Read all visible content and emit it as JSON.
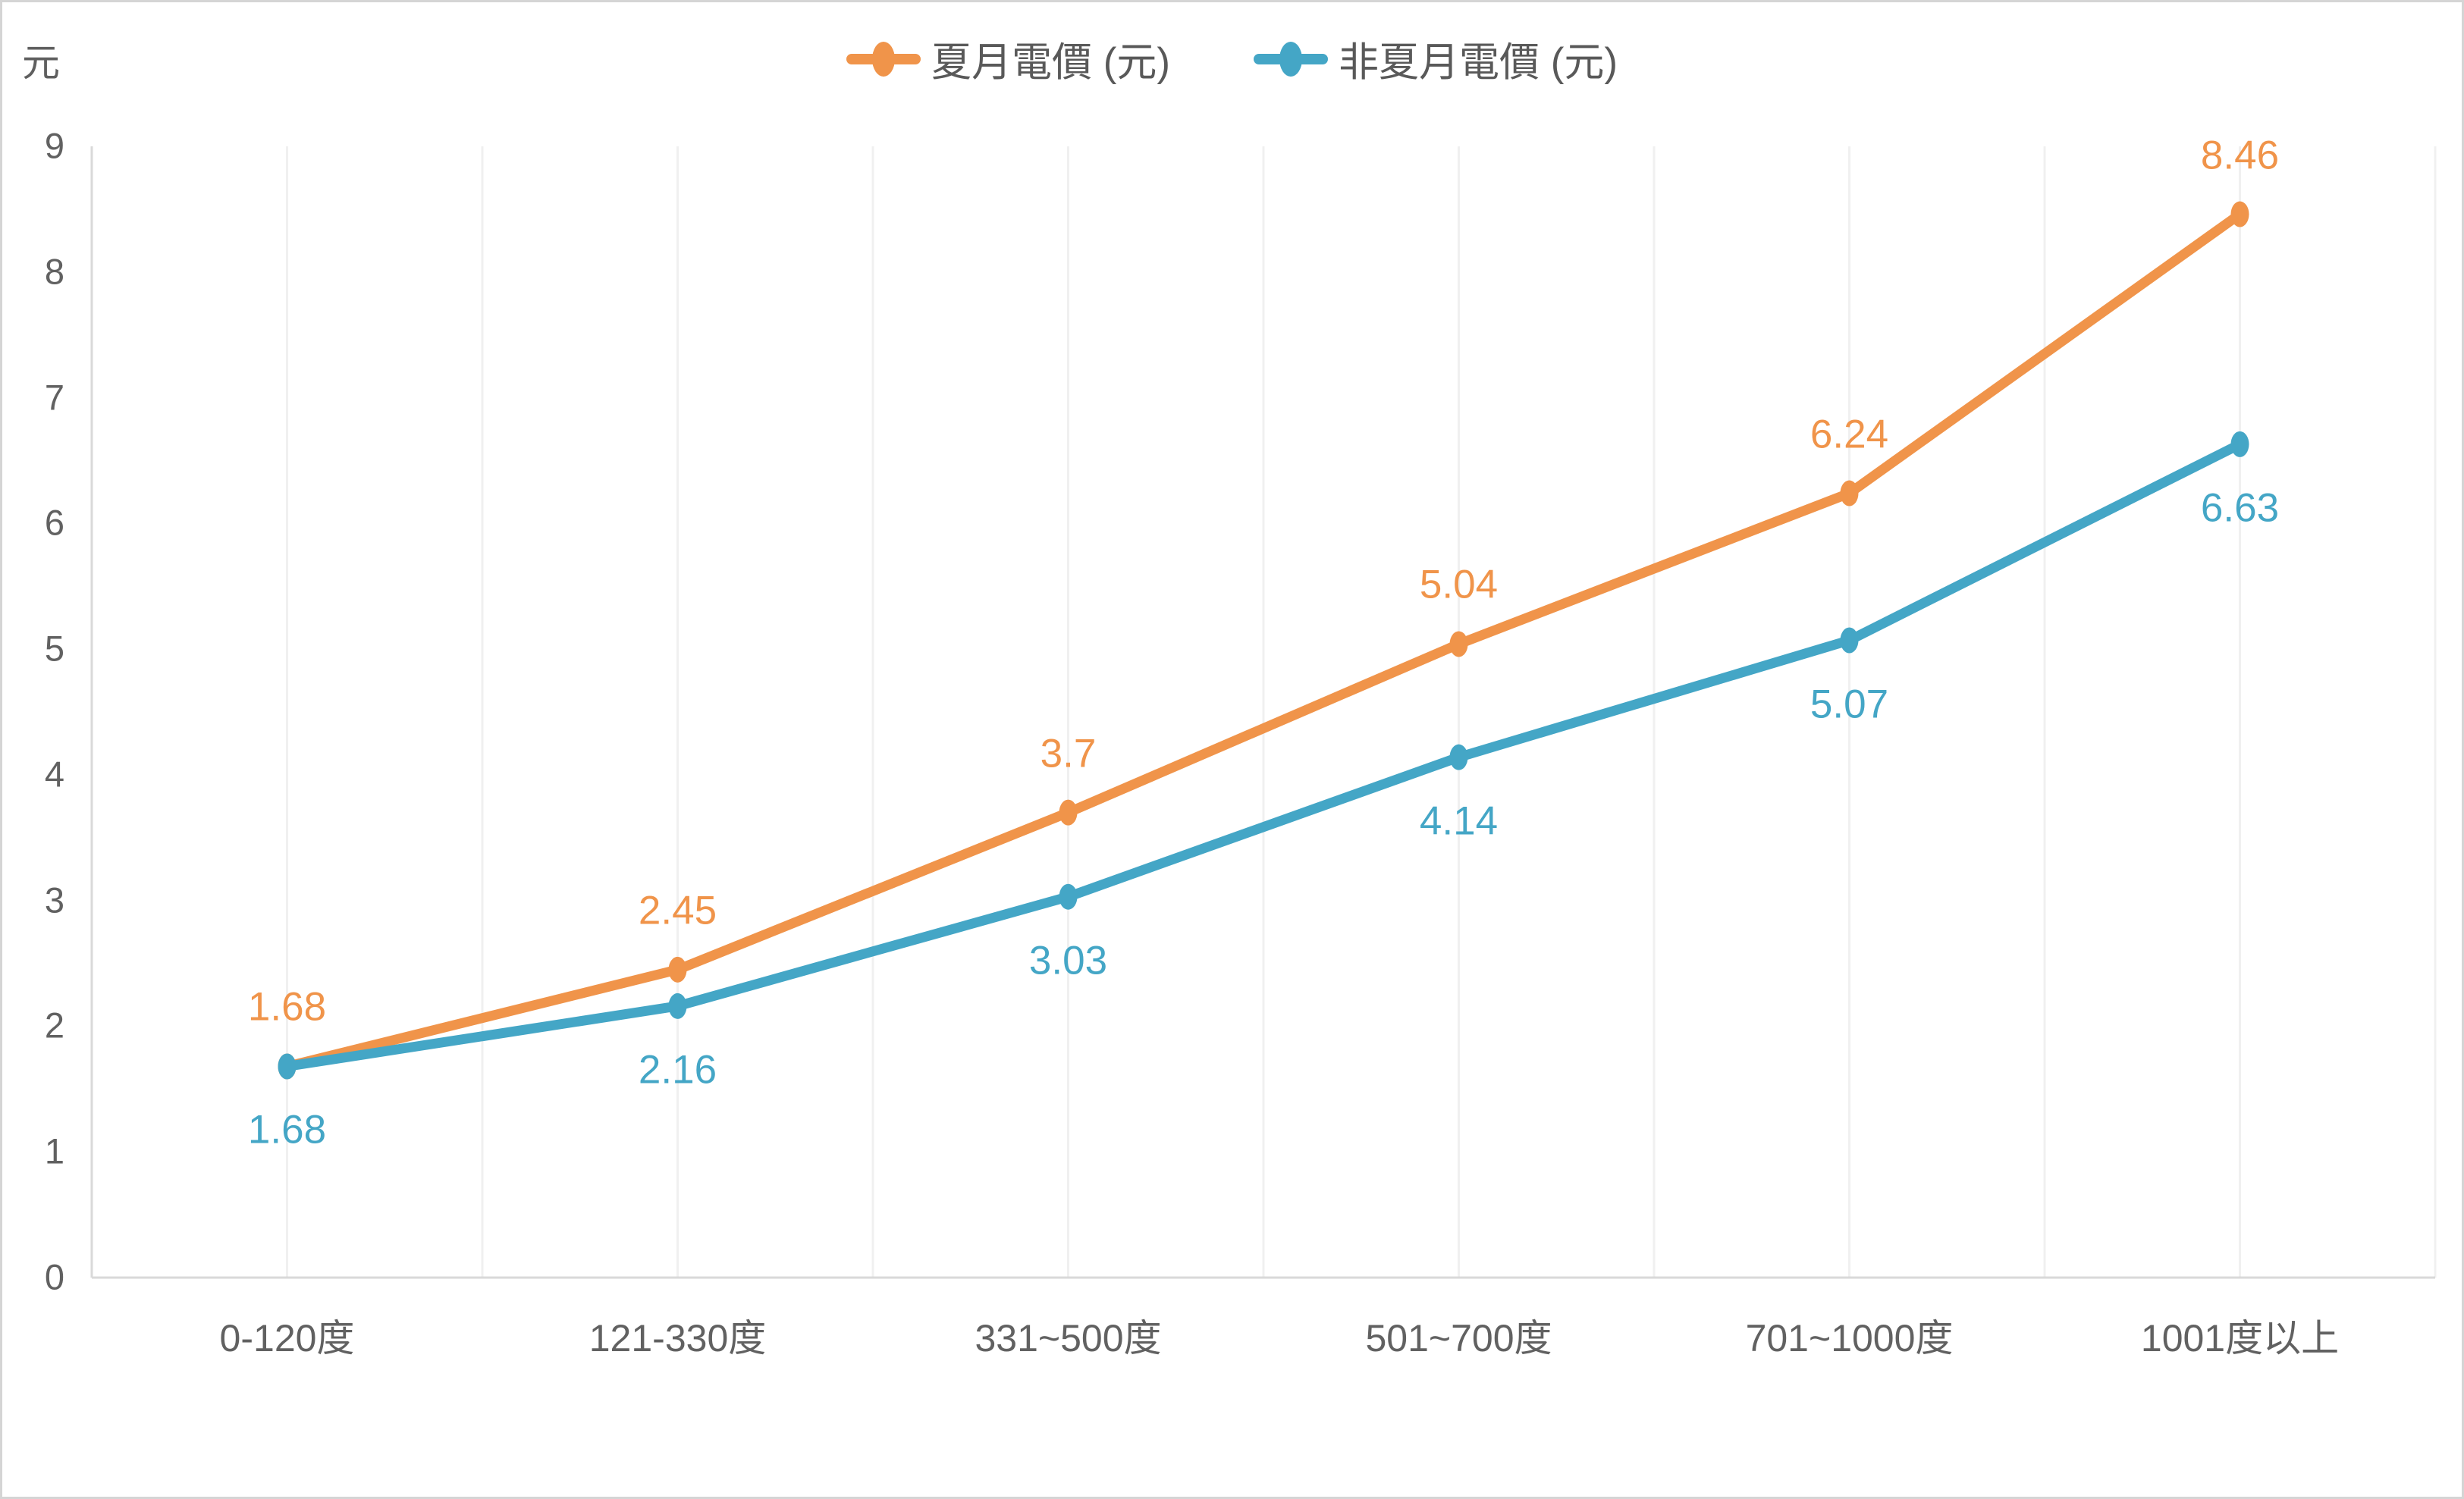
{
  "chart_data": {
    "type": "line",
    "title": "",
    "unit_label": "元",
    "categories": [
      "0-120度",
      "121-330度",
      "331~500度",
      "501~700度",
      "701~1000度",
      "1001度以上"
    ],
    "series": [
      {
        "name": "夏月電價 (元)",
        "color": "#F0944A",
        "values": [
          1.68,
          2.45,
          3.7,
          5.04,
          6.24,
          8.46
        ],
        "data_labels": [
          "1.68",
          "2.45",
          "3.7",
          "5.04",
          "6.24",
          "8.46"
        ],
        "label_position": "above"
      },
      {
        "name": "非夏月電價 (元)",
        "color": "#44A6C6",
        "values": [
          1.68,
          2.16,
          3.03,
          4.14,
          5.07,
          6.63
        ],
        "data_labels": [
          "1.68",
          "2.16",
          "3.03",
          "4.14",
          "5.07",
          "6.63"
        ],
        "label_position": "below"
      }
    ],
    "ylim": [
      0,
      9
    ],
    "yticks": [
      0,
      1,
      2,
      3,
      4,
      5,
      6,
      7,
      8,
      9
    ],
    "grid": "vertical-only",
    "legend_position": "top-center",
    "colors": {
      "axis_text": "#616161",
      "legend_text": "#595959",
      "gridline": "#F0F0F0",
      "axis_line": "#D9D9D9"
    }
  }
}
